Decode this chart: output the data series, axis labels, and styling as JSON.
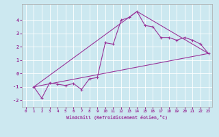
{
  "xlabel": "Windchill (Refroidissement éolien,°C)",
  "background_color": "#cce8f0",
  "line_color": "#993399",
  "xlim": [
    -0.5,
    23.5
  ],
  "ylim": [
    -2.5,
    5.2
  ],
  "xticks": [
    0,
    1,
    2,
    3,
    4,
    5,
    6,
    7,
    8,
    9,
    10,
    11,
    12,
    13,
    14,
    15,
    16,
    17,
    18,
    19,
    20,
    21,
    22,
    23
  ],
  "yticks": [
    -2,
    -1,
    0,
    1,
    2,
    3,
    4
  ],
  "series1_x": [
    1,
    2,
    3,
    4,
    5,
    6,
    7,
    8,
    9,
    10,
    11,
    12,
    13,
    14,
    15,
    16,
    17,
    18,
    19,
    20,
    21,
    22,
    23
  ],
  "series1_y": [
    -1.0,
    -1.85,
    -0.7,
    -0.8,
    -0.9,
    -0.75,
    -1.2,
    -0.4,
    -0.3,
    2.3,
    2.2,
    4.0,
    4.2,
    4.65,
    3.6,
    3.5,
    2.7,
    2.7,
    2.5,
    2.7,
    2.5,
    2.2,
    1.5
  ],
  "line1_x": [
    1,
    23
  ],
  "line1_y": [
    -1.0,
    1.5
  ],
  "line2_x": [
    1,
    14,
    23
  ],
  "line2_y": [
    -1.0,
    4.65,
    1.5
  ]
}
